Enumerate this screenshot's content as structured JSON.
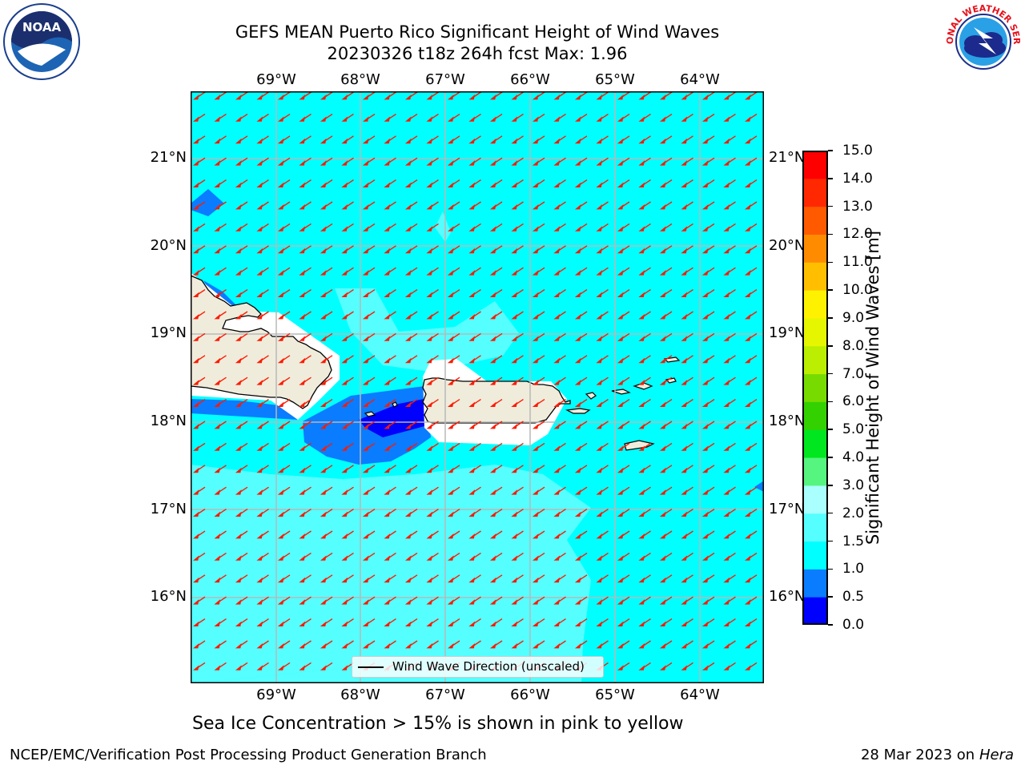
{
  "title": {
    "line1": "GEFS MEAN Puerto Rico Significant Height of Wind Waves",
    "line2": "20230326 t18z 264h fcst   Max: 1.96"
  },
  "map": {
    "lon_labels": [
      "69°W",
      "68°W",
      "67°W",
      "66°W",
      "65°W",
      "64°W"
    ],
    "lat_labels": [
      "21°N",
      "20°N",
      "19°N",
      "18°N",
      "17°N",
      "16°N"
    ],
    "colors": {
      "land": "#efecdc",
      "coastline": "#000000",
      "gridlines": "#b8b8b8",
      "arrows": "#ff1a00"
    },
    "wave_direction": "toward south-west"
  },
  "colorbar": {
    "label": "Significant Height of Wind Waves [m]",
    "tick_labels": [
      "0.0",
      "0.5",
      "1.0",
      "1.5",
      "2.0",
      "3.0",
      "4.0",
      "5.0",
      "6.0",
      "7.0",
      "8.0",
      "9.0",
      "10.0",
      "11.0",
      "12.0",
      "13.0",
      "14.0",
      "15.0"
    ],
    "colors": [
      "#0000ff",
      "#0a7cff",
      "#00ffff",
      "#55ffff",
      "#aaffff",
      "#55f57f",
      "#00e61f",
      "#33d100",
      "#77db00",
      "#bbee00",
      "#e6f500",
      "#fff200",
      "#ffbf00",
      "#ff8c00",
      "#ff5a00",
      "#ff2800",
      "#ff0000"
    ]
  },
  "legend": {
    "label": "Wind Wave Direction (unscaled)"
  },
  "subtitle": "Sea Ice Concentration > 15% is shown in pink to yellow",
  "footer": {
    "left": "NCEP/EMC/Verification Post Processing Product Generation Branch",
    "right_date": "28 Mar 2023 on",
    "right_host": "Hera"
  },
  "logos": {
    "noaa": "NOAA",
    "nws": "NATIONAL WEATHER SERVICE"
  }
}
